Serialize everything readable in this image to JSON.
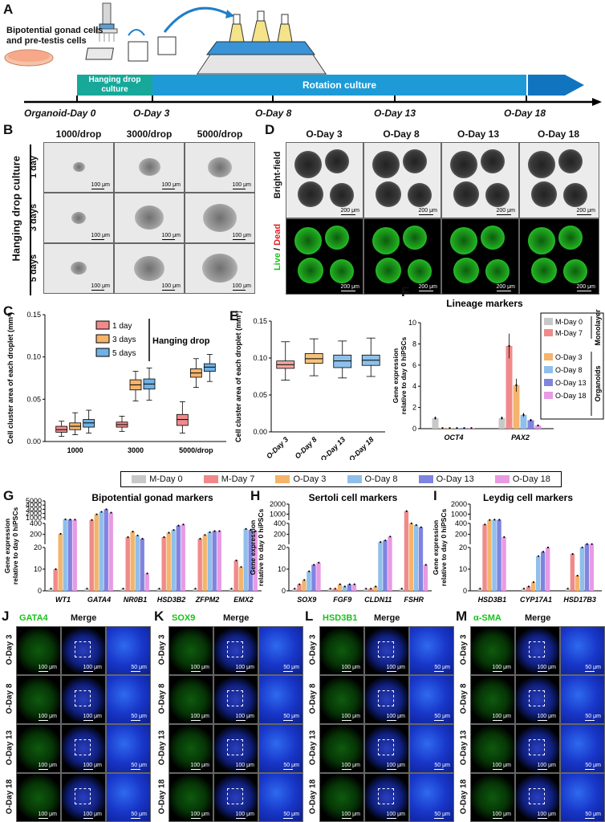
{
  "panelA": {
    "letter": "A",
    "cells_label_1": "Bipotential gonad cells",
    "cells_label_2": "and pre-testis cells",
    "hanging_1": "Hanging drop",
    "hanging_2": "culture",
    "rotation": "Rotation culture",
    "days": [
      "Organoid-Day 0",
      "O-Day 3",
      "O-Day 8",
      "O-Day 13",
      "O-Day 18"
    ]
  },
  "panelB": {
    "letter": "B",
    "cols": [
      "1000/drop",
      "3000/drop",
      "5000/drop"
    ],
    "rows": [
      "1 day",
      "3 days",
      "5 days"
    ],
    "side": "Hanging drop culture",
    "scale": "100 μm"
  },
  "panelD": {
    "letter": "D",
    "cols": [
      "O-Day 3",
      "O-Day 8",
      "O-Day 13",
      "O-Day 18"
    ],
    "row1": "Bright-field",
    "live": "Live",
    "slash": " / ",
    "dead": "Dead",
    "scale": "200 μm"
  },
  "panelC": {
    "letter": "C"
  },
  "panelE": {
    "letter": "E"
  },
  "panelF": {
    "letter": "F"
  },
  "panelG": {
    "letter": "G"
  },
  "panelH": {
    "letter": "H"
  },
  "panelI": {
    "letter": "I"
  },
  "panelJ": {
    "letter": "J",
    "stain": "GATA4",
    "merge": "Merge"
  },
  "panelK": {
    "letter": "K",
    "stain": "SOX9",
    "merge": "Merge"
  },
  "panelL": {
    "letter": "L",
    "stain": "HSD3B1",
    "merge": "Merge"
  },
  "panelM": {
    "letter": "M",
    "stain": "α-SMA",
    "merge": "Merge"
  },
  "if_rows": [
    "O-Day 3",
    "O-Day 8",
    "O-Day 13",
    "O-Day 18"
  ],
  "if_scale_100": "100 μm",
  "if_scale_50": "50 μm",
  "legend_mid": [
    "M-Day 0",
    "M-Day 7",
    "O-Day 3",
    "O-Day 8",
    "O-Day 13",
    "O-Day 18"
  ],
  "colors": {
    "m0": "#c8c8c8",
    "m7": "#f08a8a",
    "o3": "#f4b46a",
    "o8": "#8fbfea",
    "o13": "#7f84e0",
    "o18": "#e89ae4",
    "d1": "#f08a8a",
    "d3": "#f4b46a",
    "d5": "#6fb2e6",
    "fluor_green": "#19c219",
    "teal": "#17a89a",
    "blue": "#1e9bd7"
  },
  "chart_data": [
    {
      "type": "box",
      "panel": "C",
      "ylabel": "Cell cluster area of each droplet (mm²)",
      "categories": [
        "1000",
        "3000",
        "5000/drop"
      ],
      "legend_title": "Hanging drop",
      "yticks": [
        "0.00",
        "0.05",
        "0.10",
        "0.15"
      ],
      "ylim": [
        0,
        0.15
      ],
      "series": [
        {
          "name": "1 day",
          "boxes": [
            [
              0.006,
              0.011,
              0.014,
              0.018,
              0.024
            ],
            [
              0.012,
              0.017,
              0.02,
              0.023,
              0.03
            ],
            [
              0.01,
              0.019,
              0.026,
              0.032,
              0.047
            ]
          ]
        },
        {
          "name": "3 days",
          "boxes": [
            [
              0.008,
              0.014,
              0.018,
              0.022,
              0.034
            ],
            [
              0.048,
              0.061,
              0.067,
              0.073,
              0.083
            ],
            [
              0.064,
              0.076,
              0.081,
              0.086,
              0.098
            ]
          ]
        },
        {
          "name": "5 days",
          "boxes": [
            [
              0.01,
              0.017,
              0.022,
              0.026,
              0.037
            ],
            [
              0.049,
              0.062,
              0.068,
              0.074,
              0.087
            ],
            [
              0.071,
              0.083,
              0.088,
              0.092,
              0.103
            ]
          ]
        }
      ]
    },
    {
      "type": "box",
      "panel": "E",
      "ylabel": "Cell cluster area of each droplet (mm²)",
      "categories": [
        "O-Day 3",
        "O-Day 8",
        "O-Day 13",
        "O-Day 18"
      ],
      "yticks": [
        "0.00",
        "0.05",
        "0.10",
        "0.15"
      ],
      "ylim": [
        0,
        0.15
      ],
      "boxes": [
        [
          0.07,
          0.086,
          0.091,
          0.096,
          0.122
        ],
        [
          0.076,
          0.093,
          0.099,
          0.106,
          0.126
        ],
        [
          0.073,
          0.087,
          0.096,
          0.104,
          0.123
        ],
        [
          0.075,
          0.09,
          0.097,
          0.104,
          0.127
        ]
      ]
    },
    {
      "type": "bar",
      "panel": "F",
      "title": "Lineage markers",
      "ylabel": "Gene expression relative to day 0 hiPSCs",
      "categories": [
        "OCT4",
        "PAX2"
      ],
      "yticks": [
        "0",
        "2",
        "4",
        "6",
        "8",
        "10"
      ],
      "ylim": [
        0,
        10
      ],
      "legend_groups": [
        "Monolayer",
        "Organoids"
      ],
      "series": [
        {
          "name": "M-Day 0",
          "values": [
            1.0,
            1.0
          ]
        },
        {
          "name": "M-Day 7",
          "values": [
            0.05,
            7.8
          ]
        },
        {
          "name": "O-Day 3",
          "values": [
            0.05,
            4.1
          ]
        },
        {
          "name": "O-Day 8",
          "values": [
            0.05,
            1.3
          ]
        },
        {
          "name": "O-Day 13",
          "values": [
            0.05,
            0.8
          ]
        },
        {
          "name": "O-Day 18",
          "values": [
            0.05,
            0.3
          ]
        }
      ]
    },
    {
      "type": "bar",
      "panel": "G",
      "title": "Bipotential gonad markers",
      "ylabel": "Gene expression relative to day 0 hiPSCs",
      "categories": [
        "WT1",
        "GATA4",
        "NR0B1",
        "HSD3B2",
        "ZFPM2",
        "EMX2"
      ],
      "yticks": [
        "0",
        "10",
        "20",
        "200",
        "400",
        "1000",
        "2000",
        "3000",
        "4000",
        "5000"
      ],
      "series": [
        {
          "name": "M-Day 0",
          "values": [
            1,
            1,
            1,
            1,
            1,
            1
          ]
        },
        {
          "name": "M-Day 7",
          "values": [
            10,
            450,
            150,
            150,
            120,
            14
          ]
        },
        {
          "name": "O-Day 3",
          "values": [
            210,
            1800,
            250,
            230,
            190,
            11
          ]
        },
        {
          "name": "O-Day 8",
          "values": [
            600,
            2400,
            180,
            280,
            240,
            300
          ]
        },
        {
          "name": "O-Day 13",
          "values": [
            550,
            3000,
            120,
            360,
            260,
            280
          ]
        },
        {
          "name": "O-Day 18",
          "values": [
            520,
            2200,
            8,
            380,
            260,
            260
          ]
        }
      ]
    },
    {
      "type": "bar",
      "panel": "H",
      "title": "Sertoli cell markers",
      "ylabel": "Gene expression relative to day 0 hiPSCs",
      "categories": [
        "SOX9",
        "FGF9",
        "CLDN11",
        "FSHR"
      ],
      "yticks": [
        "0",
        "10",
        "20",
        "200",
        "400",
        "1000",
        "2000"
      ],
      "series": [
        {
          "name": "M-Day 0",
          "values": [
            1,
            1,
            1,
            1
          ]
        },
        {
          "name": "M-Day 7",
          "values": [
            3,
            1,
            1,
            1300
          ]
        },
        {
          "name": "O-Day 3",
          "values": [
            5,
            3,
            2,
            400
          ]
        },
        {
          "name": "O-Day 8",
          "values": [
            9,
            2,
            60,
            370
          ]
        },
        {
          "name": "O-Day 13",
          "values": [
            12,
            3,
            90,
            330
          ]
        },
        {
          "name": "O-Day 18",
          "values": [
            13,
            3,
            160,
            12
          ]
        }
      ]
    },
    {
      "type": "bar",
      "panel": "I",
      "title": "Leydig cell markers",
      "ylabel": "Gene expression relative to day 0 hiPSCs",
      "categories": [
        "HSD3B1",
        "CYP17A1",
        "HSD17B3"
      ],
      "yticks": [
        "0",
        "10",
        "20",
        "200",
        "400",
        "1000",
        "2000"
      ],
      "series": [
        {
          "name": "M-Day 0",
          "values": [
            1,
            1,
            1
          ]
        },
        {
          "name": "M-Day 7",
          "values": [
            380,
            2,
            17
          ]
        },
        {
          "name": "O-Day 3",
          "values": [
            420,
            4,
            7
          ]
        },
        {
          "name": "O-Day 8",
          "values": [
            450,
            16,
            20
          ]
        },
        {
          "name": "O-Day 13",
          "values": [
            440,
            18,
            24
          ]
        },
        {
          "name": "O-Day 18",
          "values": [
            150,
            20,
            23
          ]
        }
      ]
    }
  ]
}
